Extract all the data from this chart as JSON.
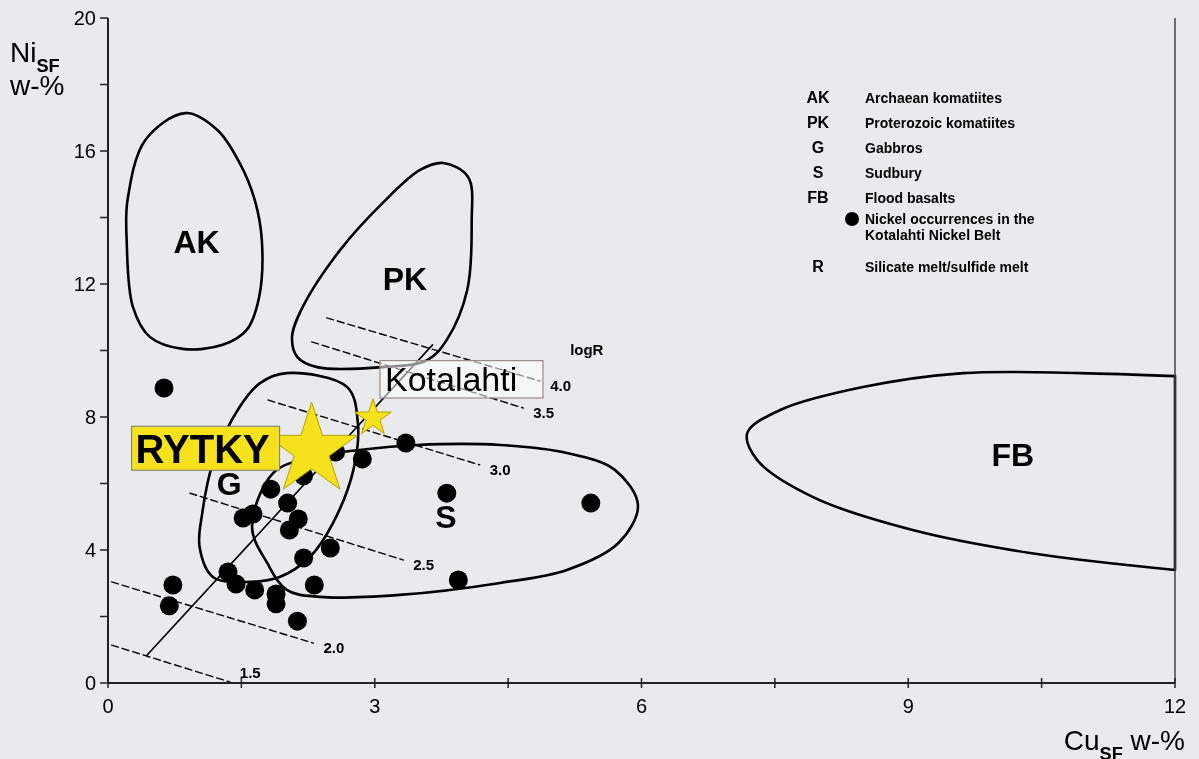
{
  "chart_data": {
    "type": "scatter",
    "xlabel": "Cu$_{SF}$ w-%",
    "ylabel": "Ni$_{SF}$ w-%",
    "xlim": [
      0,
      12
    ],
    "ylim": [
      0,
      20
    ],
    "xticks": [
      0,
      {
        "value": 1.5,
        "label": null
      },
      3,
      {
        "value": 4.5,
        "label": null
      },
      6,
      {
        "value": 7.5,
        "label": null
      },
      9,
      {
        "value": 10.5,
        "label": null
      },
      12
    ],
    "yticks": [
      0,
      {
        "value": 2,
        "label": null
      },
      4,
      {
        "value": 6,
        "label": null
      },
      8,
      {
        "value": 10,
        "label": null
      },
      12,
      {
        "value": 14,
        "label": null
      },
      16,
      {
        "value": 18,
        "label": null
      },
      20
    ],
    "grid": false,
    "legend": "top right",
    "annotations": [
      "AK",
      "Archaean komatiites",
      "PK",
      "Proterozoic komatiites",
      "G",
      "Gabbros",
      "S",
      "Sudbury",
      "FB",
      "Flood basalts",
      "R",
      "Silicate melt/sulfide melt",
      "logR",
      "AK",
      "PK",
      "G",
      "S",
      "FB"
    ],
    "series": [
      {
        "type": "line",
        "color": "#000000",
        "x": [
          0.44,
          3.65
        ],
        "values": [
          0.84,
          10.17
        ]
      },
      {
        "type": "line",
        "name": "1.5",
        "color": "#000000",
        "line_style": "dashed",
        "x": [
          0.04,
          1.37
        ],
        "values": [
          1.14,
          0.03
        ]
      },
      {
        "type": "line",
        "name": "2.0",
        "color": "#000000",
        "line_style": "dashed",
        "x": [
          0.04,
          2.31
        ],
        "values": [
          3.04,
          1.2
        ]
      },
      {
        "type": "line",
        "name": "2.5",
        "color": "#000000",
        "line_style": "dashed",
        "x": [
          0.92,
          3.32
        ],
        "values": [
          5.71,
          3.7
        ]
      },
      {
        "type": "line",
        "name": "3.0",
        "color": "#000000",
        "line_style": "dashed",
        "x": [
          1.8,
          4.18
        ],
        "values": [
          8.51,
          6.56
        ]
      },
      {
        "type": "line",
        "name": "3.5",
        "color": "#000000",
        "line_style": "dashed",
        "x": [
          2.29,
          4.67
        ],
        "values": [
          10.26,
          8.27
        ]
      },
      {
        "type": "line",
        "name": "4.0",
        "color": "#000000",
        "line_style": "dashed",
        "x": [
          2.46,
          4.86
        ],
        "values": [
          10.98,
          9.08
        ]
      },
      {
        "name": "Nickel occurrences in the Kotalahti Nickel Belt",
        "color": "#000000",
        "marker": "circle",
        "x": [
          0.63,
          0.73,
          0.69,
          1.35,
          1.44,
          1.52,
          1.63,
          1.65,
          1.83,
          1.89,
          1.89,
          2.02,
          2.04,
          2.14,
          2.2,
          2.13,
          2.2,
          2.32,
          2.5,
          2.56,
          2.86,
          3.35,
          3.81,
          3.94,
          5.43
        ],
        "values": [
          8.87,
          2.95,
          2.32,
          3.34,
          2.98,
          4.96,
          5.08,
          2.8,
          5.83,
          2.68,
          2.38,
          5.41,
          4.6,
          4.93,
          6.23,
          1.86,
          3.76,
          2.95,
          4.06,
          6.95,
          6.74,
          7.22,
          5.71,
          3.1,
          5.41
        ]
      },
      {
        "name": "RYTKY",
        "color": "#f5e21c",
        "marker": "star",
        "x": [
          2.29
        ],
        "values": [
          7.0
        ]
      },
      {
        "name": "Kotalahti",
        "color": "#f5e21c",
        "marker": "star",
        "x": [
          2.98
        ],
        "values": [
          7.97
        ]
      }
    ]
  }
}
